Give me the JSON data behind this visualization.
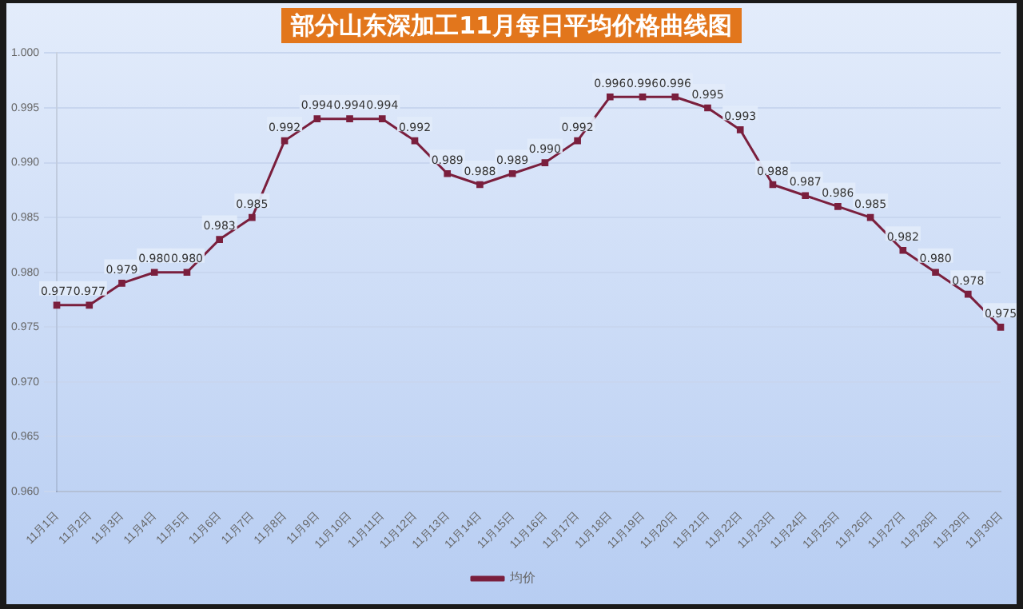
{
  "chart_data": {
    "type": "line",
    "title": "部分山东深加工11月每日平均价格曲线图",
    "categories": [
      "11月1日",
      "11月2日",
      "11月3日",
      "11月4日",
      "11月5日",
      "11月6日",
      "11月7日",
      "11月8日",
      "11月9日",
      "11月10日",
      "11月11日",
      "11月12日",
      "11月13日",
      "11月14日",
      "11月15日",
      "11月16日",
      "11月17日",
      "11月18日",
      "11月19日",
      "11月20日",
      "11月21日",
      "11月22日",
      "11月23日",
      "11月24日",
      "11月25日",
      "11月26日",
      "11月27日",
      "11月28日",
      "11月29日",
      "11月30日"
    ],
    "series": [
      {
        "name": "均价",
        "color": "#7a1f3d",
        "values": [
          0.977,
          0.977,
          0.979,
          0.98,
          0.98,
          0.983,
          0.985,
          0.992,
          0.994,
          0.994,
          0.994,
          0.992,
          0.989,
          0.988,
          0.989,
          0.99,
          0.992,
          0.996,
          0.996,
          0.996,
          0.995,
          0.993,
          0.988,
          0.987,
          0.986,
          0.985,
          0.982,
          0.98,
          0.978,
          0.975
        ],
        "value_labels": [
          "0.977",
          "0.977",
          "0.979",
          "0.980",
          "0.980",
          "0.983",
          "0.985",
          "0.992",
          "0.994",
          "0.994",
          "0.994",
          "0.992",
          "0.989",
          "0.988",
          "0.989",
          "0.990",
          "0.992",
          "0.996",
          "0.996",
          "0.996",
          "0.995",
          "0.993",
          "0.988",
          "0.987",
          "0.986",
          "0.985",
          "0.982",
          "0.980",
          "0.978",
          "0.975"
        ]
      }
    ],
    "ylim": [
      0.96,
      1.0
    ],
    "yticks": [
      {
        "value": 0.96,
        "label": "0.960"
      },
      {
        "value": 0.965,
        "label": "0.965"
      },
      {
        "value": 0.97,
        "label": "0.970"
      },
      {
        "value": 0.975,
        "label": "0.975"
      },
      {
        "value": 0.98,
        "label": "0.980"
      },
      {
        "value": 0.985,
        "label": "0.985"
      },
      {
        "value": 0.99,
        "label": "0.990"
      },
      {
        "value": 0.995,
        "label": "0.995"
      },
      {
        "value": 1.0,
        "label": "1.000"
      }
    ],
    "grid": "y",
    "legend": "bottom",
    "marker": "square",
    "line_style": "solid"
  }
}
